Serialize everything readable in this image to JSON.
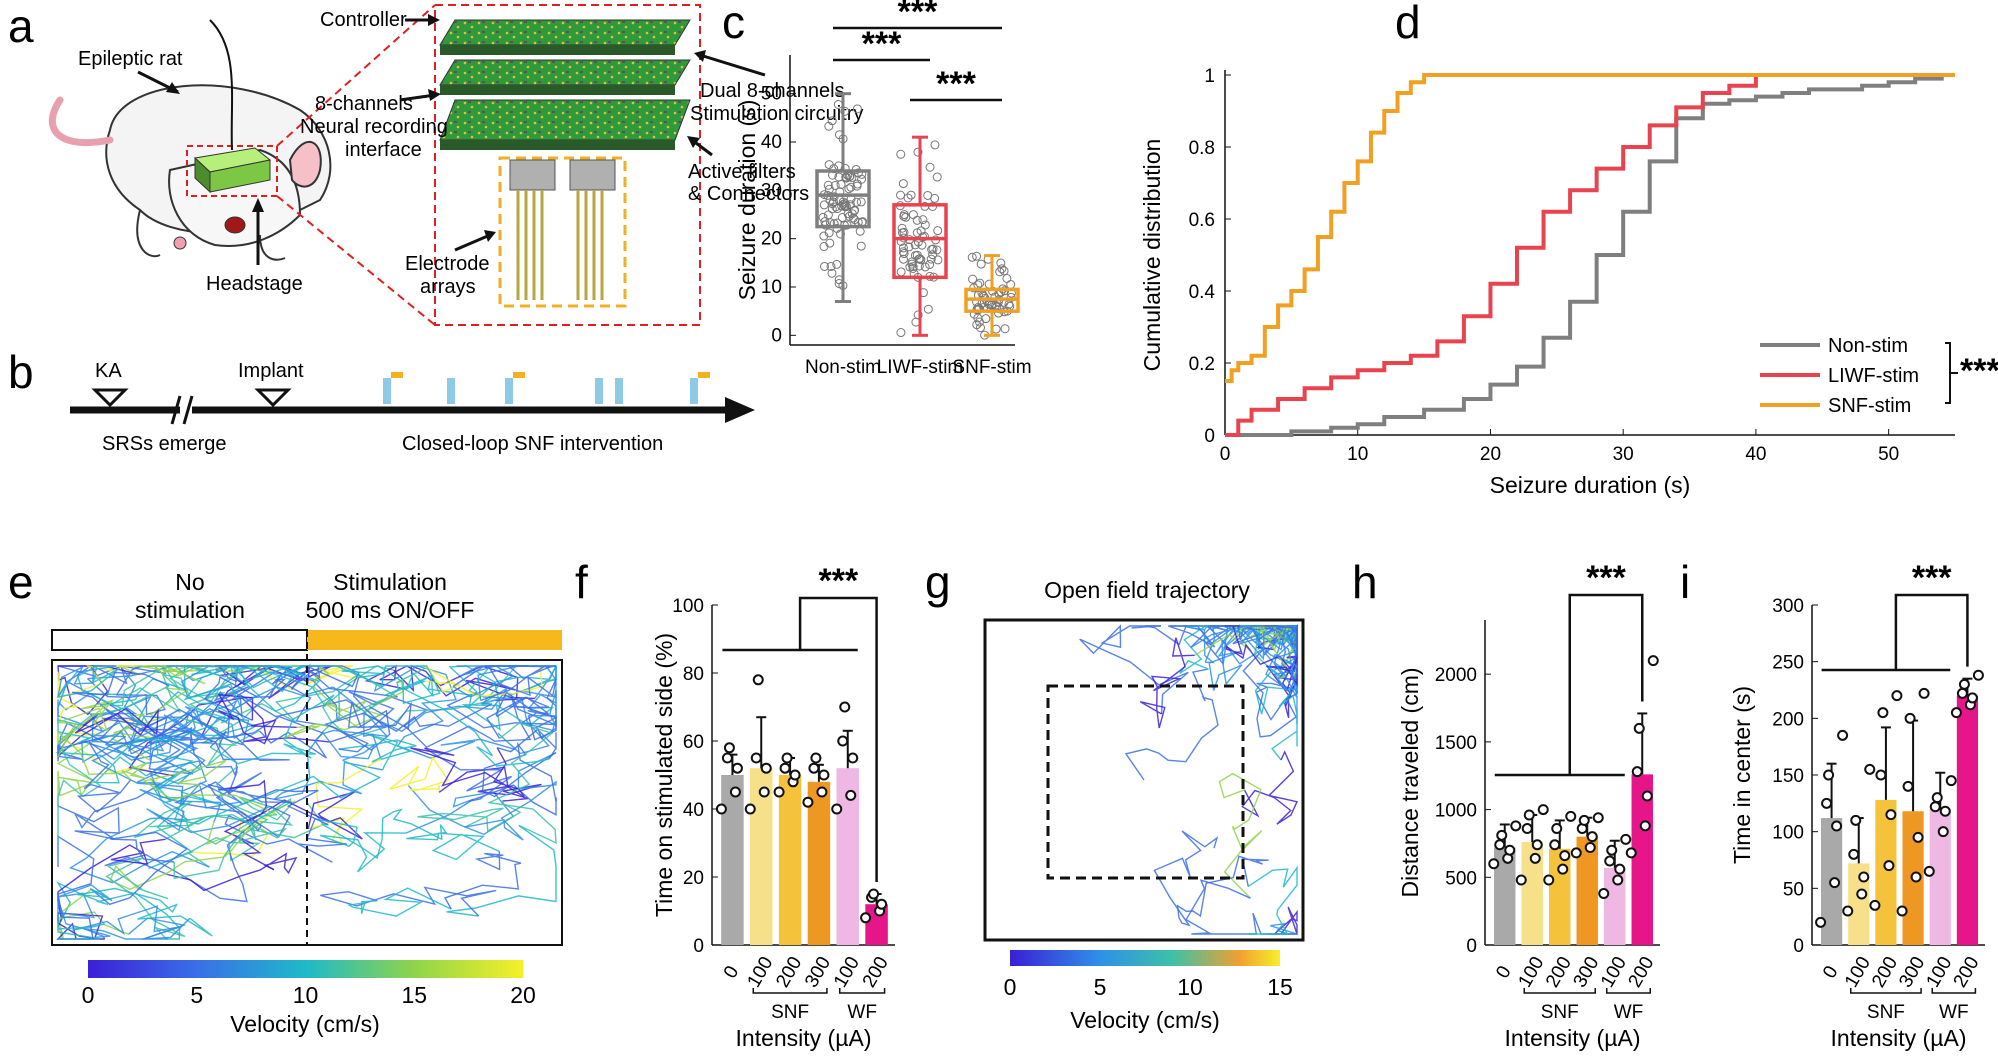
{
  "panels": {
    "a": {
      "letter": "a",
      "rat_label": "Epileptic rat",
      "headstage_label": "Headstage",
      "controller": "Controller",
      "neural1": "8-channels",
      "neural2": "Neural recording",
      "neural3": "interface",
      "stim1": "Dual 8-channels",
      "stim2": "Stimulation circuitry",
      "filt1": "Active filters",
      "filt2": "& Connectors",
      "elec1": "Electrode",
      "elec2": "arrays"
    },
    "b": {
      "letter": "b",
      "ka": "KA",
      "implant": "Implant",
      "srs": "SRSs emerge",
      "closed": "Closed-loop SNF intervention"
    },
    "e": {
      "letter": "e",
      "nostim1": "No",
      "nostim2": "stimulation",
      "stim1": "Stimulation",
      "stim2": "500 ms ON/OFF",
      "cbar_ticks": [
        "0",
        "5",
        "10",
        "15",
        "20"
      ],
      "cbar_label": "Velocity (cm/s)"
    },
    "g": {
      "letter": "g",
      "title": "Open field trajectory",
      "cbar_ticks": [
        "0",
        "5",
        "10",
        "15"
      ],
      "cbar_label": "Velocity (cm/s)"
    },
    "f": {
      "letter": "f",
      "group1": "SNF",
      "group2": "WF",
      "xlabel": "Intensity (µA)"
    },
    "h": {
      "letter": "h",
      "group1": "SNF",
      "group2": "WF",
      "xlabel": "Intensity (µA)"
    },
    "i": {
      "letter": "i",
      "group1": "SNF",
      "group2": "WF",
      "xlabel": "Intensity (µA)"
    }
  },
  "chart_data": [
    {
      "id": "c",
      "letter": "c",
      "type": "box",
      "ylabel": "Seizure duration (s)",
      "ylim": [
        -2,
        58
      ],
      "yticks": [
        "0",
        "10",
        "20",
        "30",
        "40",
        "50"
      ],
      "categories": [
        "Non-stim",
        "LIWF-stim",
        "SNF-stim"
      ],
      "colors": [
        "#7f7f7f",
        "#e8434f",
        "#f0a022"
      ],
      "boxes": [
        {
          "min": 7,
          "q1": 22.5,
          "median": 29,
          "q3": 34,
          "max": 50
        },
        {
          "min": 0,
          "q1": 12,
          "median": 20,
          "q3": 27,
          "max": 41
        },
        {
          "min": 0,
          "q1": 5,
          "median": 7.5,
          "q3": 9.5,
          "max": 16.5
        }
      ],
      "significance": [
        "***",
        "***",
        "***"
      ]
    },
    {
      "id": "d",
      "letter": "d",
      "type": "line",
      "xlabel": "Seizure duration (s)",
      "ylabel": "Cumulative distribution",
      "xlim": [
        0,
        55
      ],
      "ylim": [
        0,
        1
      ],
      "xticks": [
        "0",
        "10",
        "20",
        "30",
        "40",
        "50"
      ],
      "yticks": [
        "0",
        "0.2",
        "0.4",
        "0.6",
        "0.8",
        "1"
      ],
      "significance": "***",
      "series": [
        {
          "name": "Non-stim",
          "color": "#7f7f7f",
          "x": [
            0,
            3,
            5,
            8,
            10,
            12,
            15,
            18,
            20,
            22,
            24,
            26,
            28,
            30,
            32,
            34,
            36,
            38,
            40,
            42,
            44,
            46,
            48,
            50,
            52,
            54
          ],
          "y": [
            0,
            0,
            0.01,
            0.02,
            0.03,
            0.05,
            0.07,
            0.1,
            0.14,
            0.19,
            0.27,
            0.37,
            0.5,
            0.62,
            0.76,
            0.88,
            0.92,
            0.93,
            0.94,
            0.95,
            0.96,
            0.96,
            0.97,
            0.98,
            0.99,
            1
          ]
        },
        {
          "name": "LIWF-stim",
          "color": "#e8434f",
          "x": [
            0,
            1,
            2,
            4,
            6,
            8,
            10,
            12,
            14,
            16,
            18,
            20,
            22,
            24,
            26,
            28,
            30,
            32,
            34,
            36,
            38,
            40
          ],
          "y": [
            0,
            0.04,
            0.07,
            0.1,
            0.13,
            0.16,
            0.18,
            0.2,
            0.22,
            0.26,
            0.33,
            0.42,
            0.52,
            0.62,
            0.68,
            0.74,
            0.8,
            0.86,
            0.91,
            0.95,
            0.97,
            1
          ]
        },
        {
          "name": "SNF-stim",
          "color": "#f0a022",
          "x": [
            0,
            0.5,
            1,
            2,
            3,
            4,
            5,
            6,
            7,
            8,
            9,
            10,
            11,
            12,
            13,
            14,
            15,
            16,
            55
          ],
          "y": [
            0.15,
            0.18,
            0.2,
            0.22,
            0.3,
            0.36,
            0.4,
            0.46,
            0.55,
            0.62,
            0.7,
            0.76,
            0.84,
            0.9,
            0.95,
            0.98,
            1,
            1,
            1
          ]
        }
      ]
    },
    {
      "id": "f",
      "letter": "f",
      "type": "bar",
      "ylabel": "Time on stimulated side (%)",
      "ylim": [
        0,
        100
      ],
      "yticks": [
        "0",
        "20",
        "40",
        "60",
        "80",
        "100"
      ],
      "categories": [
        "0",
        "100",
        "200",
        "300",
        "100",
        "200"
      ],
      "colors": [
        "#a9a9a9",
        "#f7e08a",
        "#f5c23c",
        "#ee9722",
        "#efb7e3",
        "#e6158a"
      ],
      "values": [
        50,
        52,
        50,
        48,
        52,
        12
      ],
      "errors": [
        6,
        15,
        5,
        5,
        11,
        3
      ],
      "points": [
        [
          40,
          45,
          52,
          55,
          58
        ],
        [
          40,
          45,
          52,
          55,
          78
        ],
        [
          45,
          48,
          50,
          52,
          55
        ],
        [
          42,
          45,
          50,
          52,
          55
        ],
        [
          40,
          44,
          55,
          60,
          70
        ],
        [
          8,
          10,
          12,
          14,
          15
        ]
      ],
      "significance": "***"
    },
    {
      "id": "h",
      "letter": "h",
      "type": "bar",
      "ylabel": "Distance traveled (cm)",
      "ylim": [
        0,
        2400
      ],
      "yticks": [
        "0",
        "500",
        "1000",
        "1500",
        "2000"
      ],
      "categories": [
        "0",
        "100",
        "200",
        "300",
        "100",
        "200"
      ],
      "colors": [
        "#a9a9a9",
        "#f7e08a",
        "#f5c23c",
        "#ee9722",
        "#efb7e3",
        "#e6158a"
      ],
      "values": [
        720,
        760,
        710,
        800,
        570,
        1260
      ],
      "errors": [
        170,
        200,
        210,
        140,
        200,
        450
      ],
      "points": [
        [
          600,
          640,
          700,
          740,
          810,
          880
        ],
        [
          480,
          640,
          740,
          860,
          960,
          1000
        ],
        [
          480,
          560,
          660,
          740,
          860,
          950
        ],
        [
          680,
          720,
          800,
          860,
          920,
          940
        ],
        [
          380,
          480,
          560,
          620,
          700,
          780
        ],
        [
          680,
          880,
          1100,
          1280,
          1600,
          2100
        ]
      ],
      "significance": "***"
    },
    {
      "id": "i",
      "letter": "i",
      "type": "bar",
      "ylabel": "Time in center (s)",
      "ylim": [
        0,
        300
      ],
      "yticks": [
        "0",
        "50",
        "100",
        "150",
        "200",
        "250",
        "300"
      ],
      "categories": [
        "0",
        "100",
        "200",
        "300",
        "100",
        "200"
      ],
      "colors": [
        "#a9a9a9",
        "#f7e08a",
        "#f5c23c",
        "#ee9722",
        "#efb7e3",
        "#e6158a"
      ],
      "values": [
        112,
        72,
        128,
        118,
        120,
        220
      ],
      "errors": [
        48,
        40,
        64,
        80,
        32,
        15
      ],
      "points": [
        [
          20,
          55,
          105,
          125,
          150,
          185
        ],
        [
          30,
          45,
          60,
          80,
          110,
          155
        ],
        [
          35,
          70,
          115,
          150,
          205,
          220
        ],
        [
          30,
          60,
          95,
          140,
          200,
          222
        ],
        [
          65,
          100,
          118,
          122,
          130,
          145
        ],
        [
          205,
          212,
          218,
          222,
          230,
          238
        ]
      ],
      "significance": "***"
    }
  ]
}
